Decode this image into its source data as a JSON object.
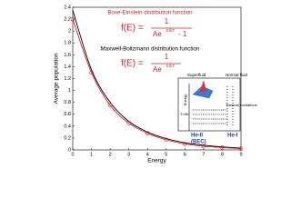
{
  "chart_data": {
    "type": "line",
    "x": [
      0,
      1,
      2,
      3,
      4,
      5,
      6,
      7,
      8,
      9
    ],
    "series": [
      {
        "name": "Bose-Einstein distribution function",
        "color": "#000000",
        "values": [
          2.35,
          1.35,
          0.8,
          0.48,
          0.3,
          0.19,
          0.12,
          0.08,
          0.05,
          0.03
        ]
      },
      {
        "name": "Maxwell-Boltzmann distribution function",
        "color": "#d0202a",
        "values": [
          2.2,
          1.3,
          0.75,
          0.45,
          0.28,
          0.17,
          0.1,
          0.06,
          0.04,
          0.02
        ],
        "markers": true
      }
    ],
    "xlabel": "Energy",
    "ylabel": "Average population",
    "xlim": [
      0,
      9
    ],
    "xticks": [
      0,
      1,
      2,
      3,
      4,
      5,
      6,
      7,
      8,
      9
    ],
    "ylim": [
      0,
      2.4
    ],
    "yticks": [
      0,
      0.2,
      0.4,
      0.6,
      0.8,
      1,
      1.2,
      1.4,
      1.6,
      1.8,
      2,
      2.2,
      2.4
    ],
    "formulas": [
      {
        "lhs": "f(E) =",
        "num": "1",
        "base": "Ae",
        "exp": "E/kT",
        "tail": "- 1"
      },
      {
        "lhs": "f(E) =",
        "num": "1",
        "base": "Ae",
        "exp": "E/kT"
      }
    ],
    "inset": {
      "superfluid": "Superfluid",
      "normal": "Normal fluid",
      "energy": "Energy",
      "thermal": "Thermal excitations",
      "t0": "T=0K",
      "he2": "He-II",
      "bec": "(BEC)",
      "he1": "He-I"
    }
  }
}
